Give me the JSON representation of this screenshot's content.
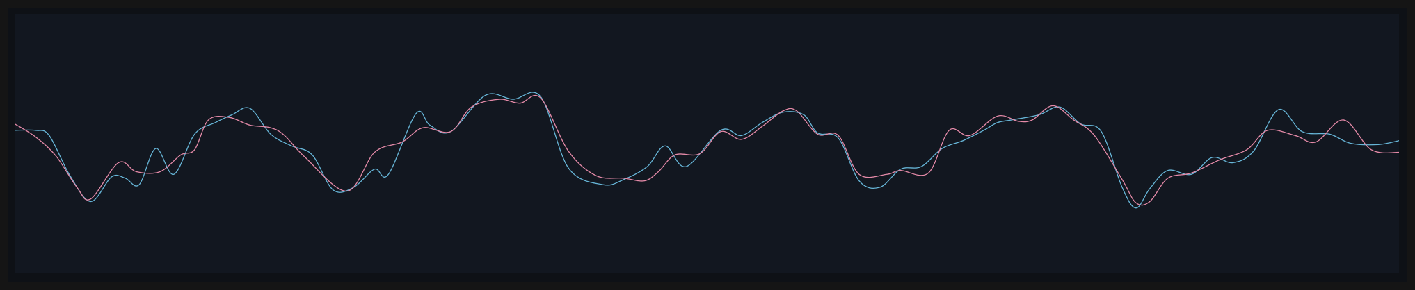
{
  "chart_data": {
    "type": "line",
    "title": "",
    "xlabel": "",
    "ylabel": "",
    "grid": false,
    "legend": "none",
    "xlim": [
      0,
      100
    ],
    "ylim": [
      -1,
      1
    ],
    "colors": {
      "background": "#121720",
      "frame": "#151515",
      "blue": "#67b6d8",
      "pink": "#e58aa8"
    },
    "series": [
      {
        "color": "#67b6d8",
        "points": [
          [
            0.0,
            0.1
          ],
          [
            1.5,
            0.1
          ],
          [
            2.5,
            0.06
          ],
          [
            4.0,
            -0.25
          ],
          [
            5.5,
            -0.45
          ],
          [
            7.0,
            -0.26
          ],
          [
            8.0,
            -0.27
          ],
          [
            9.0,
            -0.32
          ],
          [
            10.2,
            -0.04
          ],
          [
            11.5,
            -0.24
          ],
          [
            13.0,
            0.07
          ],
          [
            14.5,
            0.16
          ],
          [
            15.7,
            0.22
          ],
          [
            17.0,
            0.27
          ],
          [
            18.5,
            0.07
          ],
          [
            20.0,
            -0.02
          ],
          [
            21.5,
            -0.09
          ],
          [
            23.0,
            -0.36
          ],
          [
            24.5,
            -0.34
          ],
          [
            26.0,
            -0.2
          ],
          [
            27.0,
            -0.24
          ],
          [
            29.0,
            0.23
          ],
          [
            30.0,
            0.14
          ],
          [
            31.5,
            0.09
          ],
          [
            34.0,
            0.37
          ],
          [
            36.0,
            0.34
          ],
          [
            38.0,
            0.36
          ],
          [
            40.0,
            -0.19
          ],
          [
            42.5,
            -0.32
          ],
          [
            44.0,
            -0.28
          ],
          [
            45.7,
            -0.18
          ],
          [
            47.0,
            -0.02
          ],
          [
            48.5,
            -0.18
          ],
          [
            51.0,
            0.1
          ],
          [
            52.5,
            0.06
          ],
          [
            54.0,
            0.16
          ],
          [
            55.5,
            0.24
          ],
          [
            57.0,
            0.22
          ],
          [
            58.0,
            0.08
          ],
          [
            59.5,
            0.04
          ],
          [
            61.0,
            -0.29
          ],
          [
            62.5,
            -0.34
          ],
          [
            64.0,
            -0.2
          ],
          [
            65.5,
            -0.18
          ],
          [
            67.0,
            -0.04
          ],
          [
            68.5,
            0.02
          ],
          [
            70.0,
            0.1
          ],
          [
            71.0,
            0.16
          ],
          [
            72.0,
            0.18
          ],
          [
            74.0,
            0.22
          ],
          [
            75.5,
            0.28
          ],
          [
            77.0,
            0.15
          ],
          [
            78.5,
            0.09
          ],
          [
            80.0,
            -0.34
          ],
          [
            81.0,
            -0.5
          ],
          [
            82.0,
            -0.35
          ],
          [
            83.3,
            -0.21
          ],
          [
            85.0,
            -0.24
          ],
          [
            86.5,
            -0.11
          ],
          [
            88.0,
            -0.15
          ],
          [
            89.5,
            -0.06
          ],
          [
            91.3,
            0.26
          ],
          [
            93.0,
            0.09
          ],
          [
            95.0,
            0.07
          ],
          [
            96.5,
            0.0
          ],
          [
            98.5,
            -0.01
          ],
          [
            100.0,
            0.02
          ]
        ]
      },
      {
        "color": "#e58aa8",
        "points": [
          [
            0.0,
            0.15
          ],
          [
            1.5,
            0.05
          ],
          [
            3.0,
            -0.1
          ],
          [
            4.5,
            -0.34
          ],
          [
            5.5,
            -0.43
          ],
          [
            7.5,
            -0.15
          ],
          [
            8.8,
            -0.22
          ],
          [
            10.5,
            -0.22
          ],
          [
            12.0,
            -0.09
          ],
          [
            13.0,
            -0.05
          ],
          [
            14.0,
            0.18
          ],
          [
            15.5,
            0.2
          ],
          [
            17.0,
            0.14
          ],
          [
            18.5,
            0.12
          ],
          [
            19.5,
            0.06
          ],
          [
            21.0,
            -0.11
          ],
          [
            24.0,
            -0.37
          ],
          [
            26.0,
            -0.07
          ],
          [
            28.0,
            0.01
          ],
          [
            29.5,
            0.12
          ],
          [
            31.5,
            0.09
          ],
          [
            33.0,
            0.28
          ],
          [
            35.0,
            0.34
          ],
          [
            36.5,
            0.31
          ],
          [
            38.0,
            0.35
          ],
          [
            40.0,
            -0.06
          ],
          [
            42.0,
            -0.25
          ],
          [
            44.0,
            -0.27
          ],
          [
            45.5,
            -0.29
          ],
          [
            46.5,
            -0.22
          ],
          [
            47.7,
            -0.09
          ],
          [
            49.5,
            -0.08
          ],
          [
            51.0,
            0.09
          ],
          [
            52.5,
            0.03
          ],
          [
            54.0,
            0.13
          ],
          [
            55.5,
            0.25
          ],
          [
            56.5,
            0.25
          ],
          [
            58.0,
            0.07
          ],
          [
            59.5,
            0.06
          ],
          [
            61.0,
            -0.24
          ],
          [
            63.0,
            -0.24
          ],
          [
            64.0,
            -0.21
          ],
          [
            66.0,
            -0.23
          ],
          [
            67.5,
            0.1
          ],
          [
            69.0,
            0.06
          ],
          [
            71.0,
            0.21
          ],
          [
            72.5,
            0.17
          ],
          [
            73.5,
            0.18
          ],
          [
            75.0,
            0.29
          ],
          [
            76.5,
            0.18
          ],
          [
            78.0,
            0.06
          ],
          [
            80.0,
            -0.28
          ],
          [
            81.0,
            -0.46
          ],
          [
            82.0,
            -0.45
          ],
          [
            83.3,
            -0.27
          ],
          [
            85.0,
            -0.23
          ],
          [
            87.0,
            -0.13
          ],
          [
            89.0,
            -0.05
          ],
          [
            90.5,
            0.1
          ],
          [
            92.5,
            0.06
          ],
          [
            94.0,
            0.01
          ],
          [
            96.0,
            0.18
          ],
          [
            98.0,
            -0.05
          ],
          [
            100.0,
            -0.07
          ]
        ]
      }
    ]
  }
}
